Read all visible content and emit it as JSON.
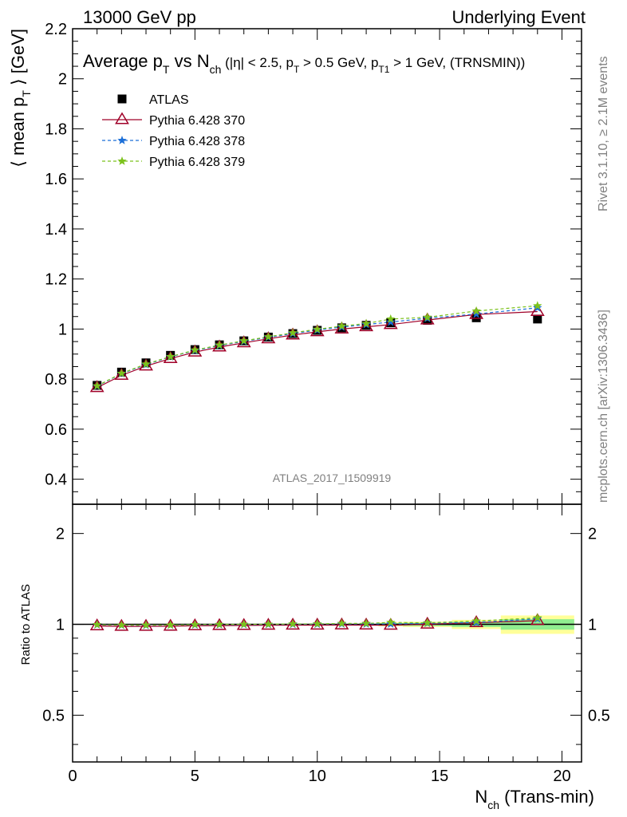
{
  "header": {
    "left": "13000 GeV pp",
    "right": "Underlying Event"
  },
  "chart_title": {
    "main": "Average p",
    "sub_T": "T",
    "vs": " vs N",
    "sub_ch": "ch",
    "cuts_a": " (|η| < 2.5, p",
    "cuts_sub1": "T",
    "cuts_b": " > 0.5 GeV, p",
    "cuts_sub2": "T1",
    "cuts_c": " > 1 GeV, (TRNSMIN))"
  },
  "side_labels": {
    "rivet": "Rivet 3.1.10, ≥ 2.1M events",
    "mcplots": "mcplots.cern.ch [arXiv:1306.3436]"
  },
  "analysis_id": "ATLAS_2017_I1509919",
  "legend": [
    {
      "name": "ATLAS",
      "marker": "square",
      "color": "#000000"
    },
    {
      "name": "Pythia 6.428 370",
      "marker": "triangle",
      "color": "#a00028"
    },
    {
      "name": "Pythia 6.428 378",
      "marker": "star",
      "color": "#1c6fd8"
    },
    {
      "name": "Pythia 6.428 379",
      "marker": "star",
      "color": "#7cc21c"
    }
  ],
  "axes": {
    "ylabel_main_a": "⟨ mean p",
    "ylabel_main_sub": "T",
    "ylabel_main_b": " ⟩ [GeV]",
    "ylabel_ratio": "Ratio to ATLAS",
    "xlabel_a": "N",
    "xlabel_sub": "ch",
    "xlabel_b": " (Trans-min)",
    "main_yticks": [
      "0.4",
      "0.6",
      "0.8",
      "1",
      "1.2",
      "1.4",
      "1.6",
      "1.8",
      "2",
      "2.2"
    ],
    "ratio_yticks_left": [
      "0.5",
      "1",
      "2"
    ],
    "ratio_yticks_right": [
      "0.5",
      "1",
      "2"
    ],
    "xticks": [
      "0",
      "5",
      "10",
      "15",
      "20"
    ]
  },
  "chart_data": {
    "type": "scatter",
    "x": [
      1,
      2,
      3,
      4,
      5,
      6,
      7,
      8,
      9,
      10,
      11,
      12,
      13,
      14.5,
      16.5,
      19
    ],
    "xlim": [
      0,
      20.8
    ],
    "ylim": [
      0.3,
      2.2
    ],
    "ratio_ylim": [
      0.35,
      2.5
    ],
    "ratio_scale": "log",
    "series": [
      {
        "name": "ATLAS",
        "values": [
          0.775,
          0.828,
          0.865,
          0.895,
          0.918,
          0.937,
          0.953,
          0.968,
          0.982,
          0.995,
          1.005,
          1.015,
          1.025,
          1.035,
          1.045,
          1.04
        ]
      },
      {
        "name": "Pythia 6.428 370",
        "values": [
          0.766,
          0.815,
          0.852,
          0.882,
          0.908,
          0.928,
          0.945,
          0.961,
          0.976,
          0.989,
          1.0,
          1.009,
          1.018,
          1.036,
          1.058,
          1.07
        ]
      },
      {
        "name": "Pythia 6.428 378",
        "values": [
          0.772,
          0.822,
          0.858,
          0.889,
          0.914,
          0.934,
          0.951,
          0.967,
          0.982,
          0.996,
          1.008,
          1.018,
          1.028,
          1.043,
          1.06,
          1.085
        ]
      },
      {
        "name": "Pythia 6.428 379",
        "values": [
          0.773,
          0.823,
          0.86,
          0.89,
          0.916,
          0.936,
          0.953,
          0.969,
          0.985,
          0.999,
          1.012,
          1.022,
          1.04,
          1.047,
          1.072,
          1.093
        ]
      }
    ],
    "ratio_bands": [
      {
        "xlow": 12.5,
        "xhigh": 13.5,
        "stat": 0.01,
        "total": 0.015
      },
      {
        "xlow": 13.5,
        "xhigh": 15.5,
        "stat": 0.012,
        "total": 0.02
      },
      {
        "xlow": 15.5,
        "xhigh": 17.5,
        "stat": 0.02,
        "total": 0.035
      },
      {
        "xlow": 17.5,
        "xhigh": 20.5,
        "stat": 0.04,
        "total": 0.07
      }
    ],
    "band_colors": {
      "stat": "#90ee90",
      "total": "#ffff99"
    }
  }
}
